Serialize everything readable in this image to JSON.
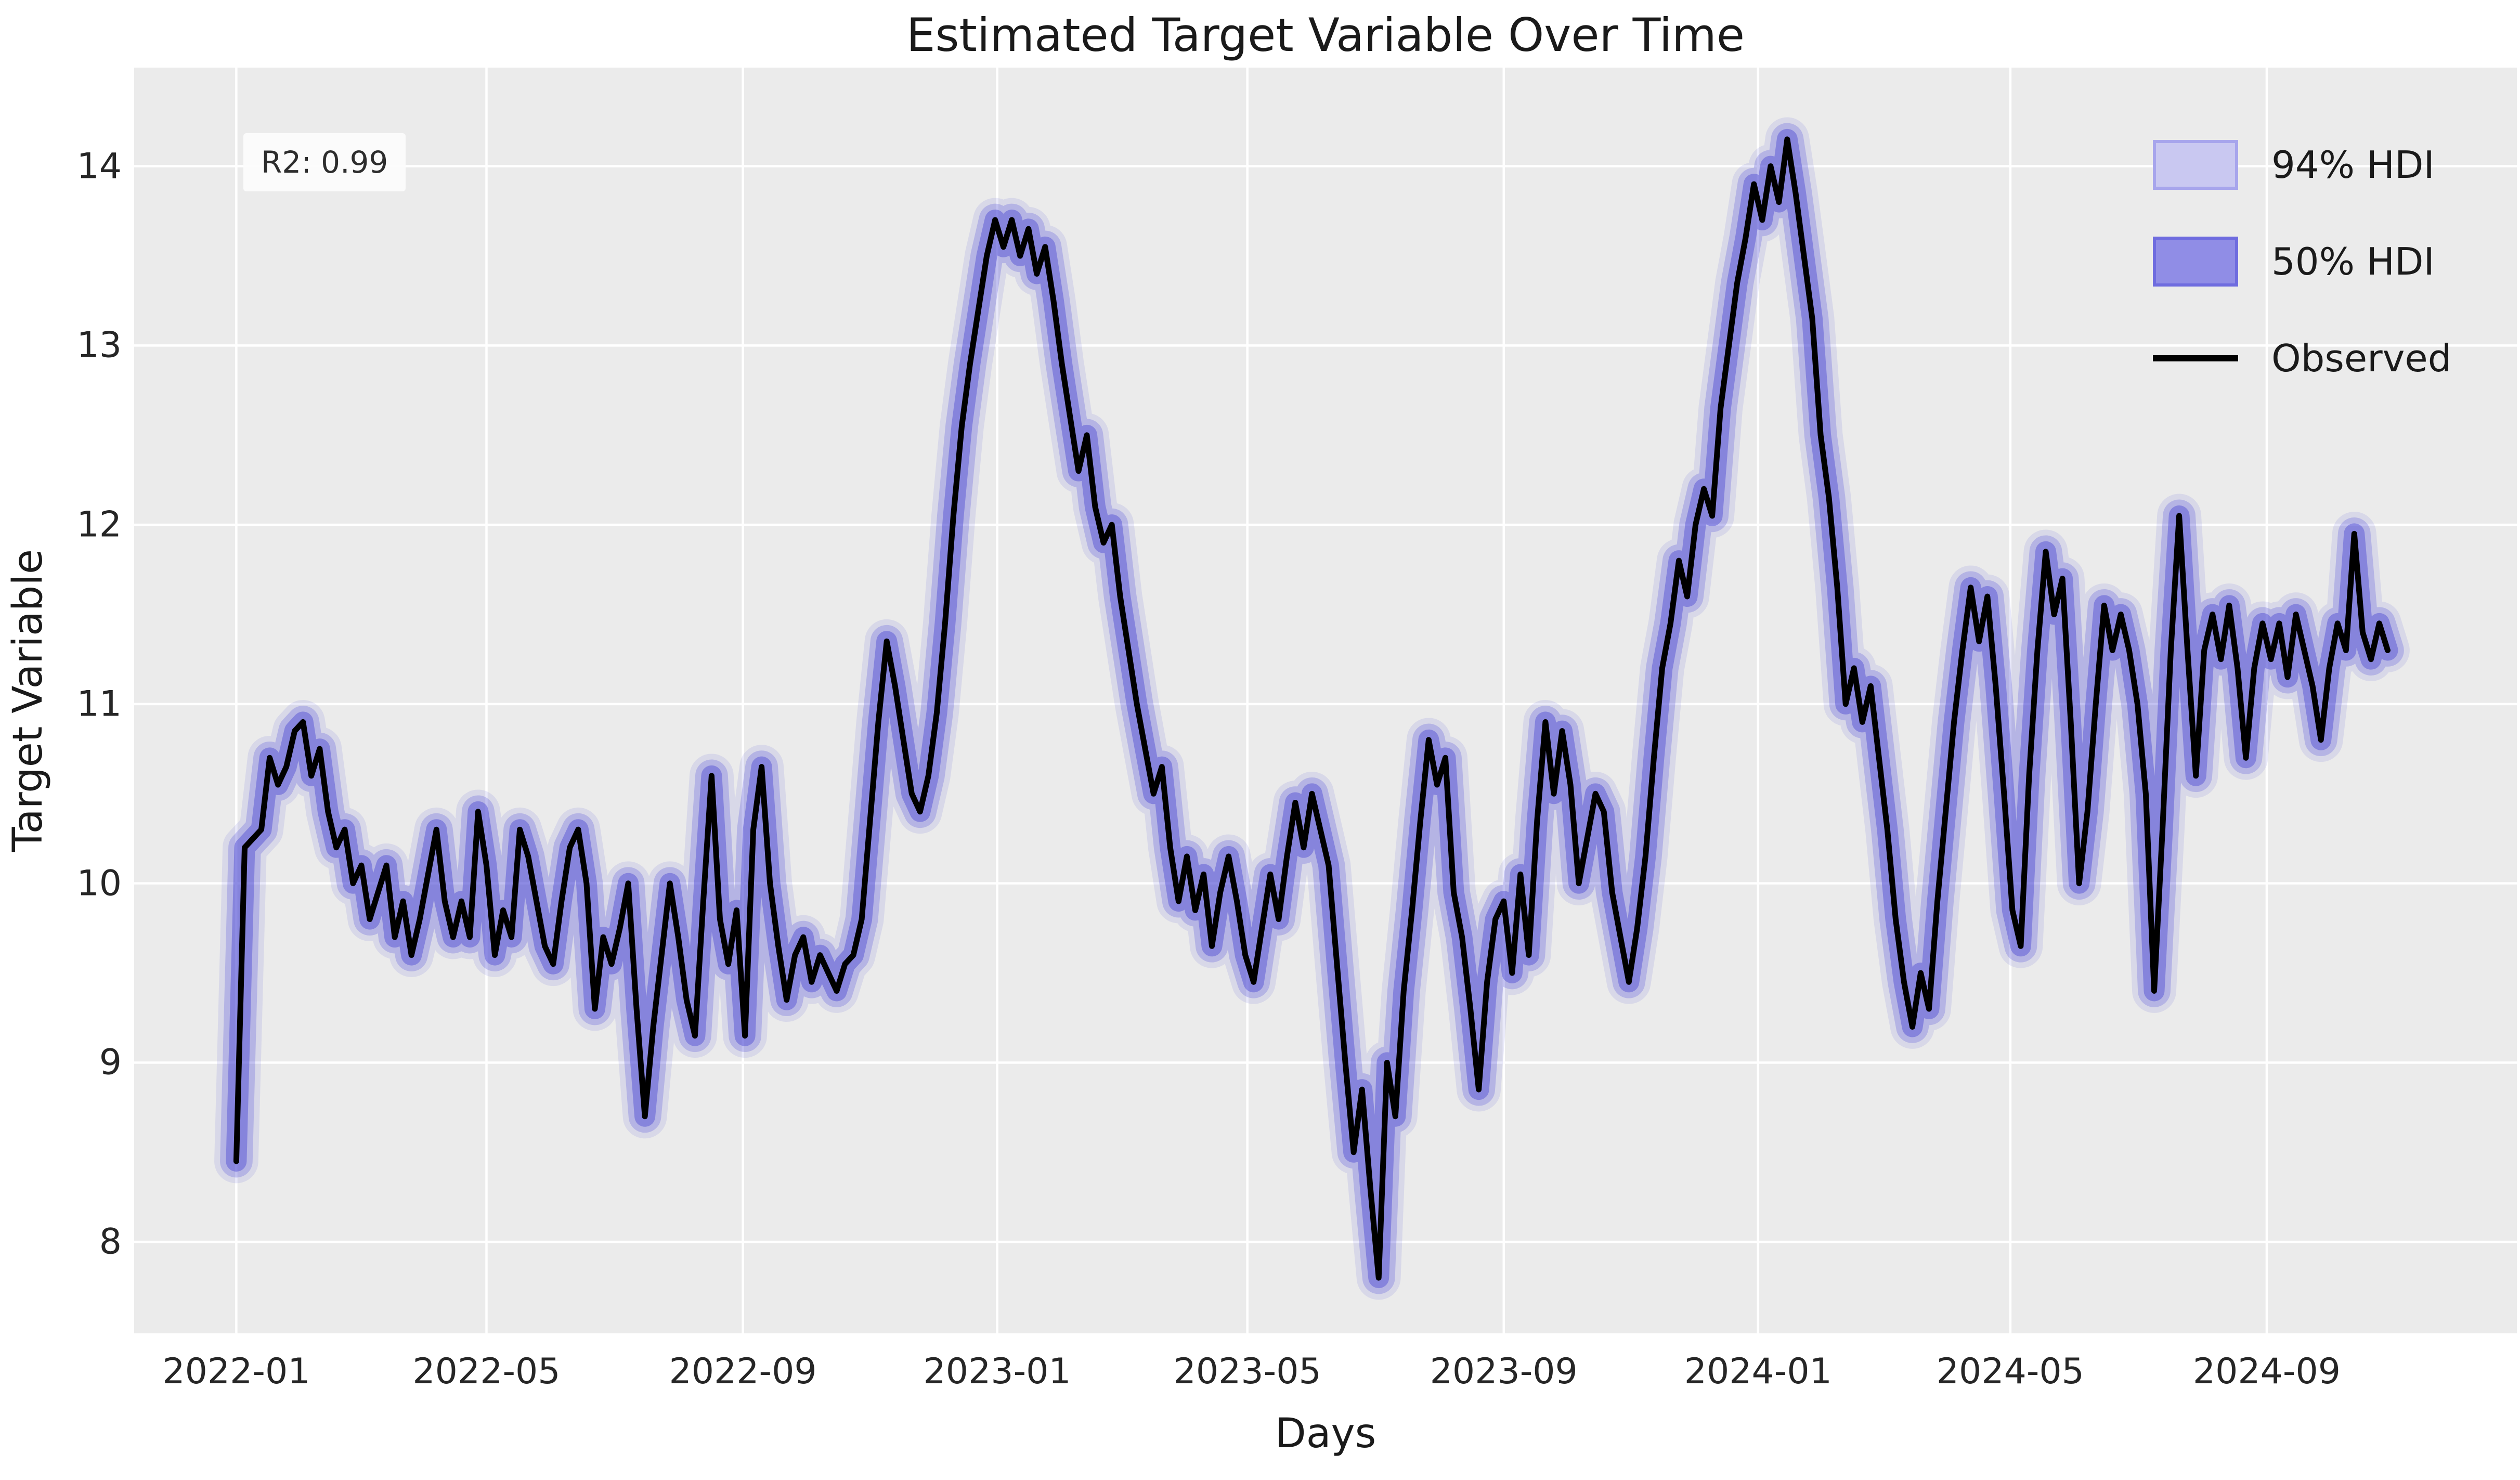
{
  "figure": {
    "title": "Estimated Target Variable Over Time",
    "background_color": "#ffffff"
  },
  "axes": {
    "xlabel": "Days",
    "ylabel": "Target Variable",
    "facecolor": "#ebebeb",
    "grid_color": "#ffffff"
  },
  "annotation": {
    "text": "R2: 0.99"
  },
  "legend": {
    "entries": [
      {
        "label": "94% HDI",
        "kind": "patch",
        "fill": "#c9c8f1",
        "border": "#a7a5ec"
      },
      {
        "label": "50% HDI",
        "kind": "patch",
        "fill": "#908de6",
        "border": "#6f6cdf"
      },
      {
        "label": "Observed",
        "kind": "line",
        "color": "#000000"
      }
    ]
  },
  "chart_data": {
    "type": "line",
    "title": "Estimated Target Variable Over Time",
    "xlabel": "Days",
    "ylabel": "Target Variable",
    "legend_position": "upper right",
    "grid": true,
    "r2_annotation": "R2: 0.99",
    "x_tick_labels": [
      "2022-01",
      "2022-05",
      "2022-09",
      "2023-01",
      "2023-05",
      "2023-09",
      "2024-01",
      "2024-05",
      "2024-09"
    ],
    "x_tick_days": [
      0,
      120,
      243,
      365,
      485,
      608,
      730,
      851,
      974
    ],
    "y_ticks": [
      8,
      9,
      10,
      11,
      12,
      13,
      14
    ],
    "xlim_days": [
      -49,
      1094
    ],
    "ylim": [
      7.49,
      14.55
    ],
    "series": [
      {
        "name": "Observed",
        "color": "#000000",
        "x_start_day": 0,
        "x_step_days": 4,
        "values": [
          8.45,
          10.2,
          10.25,
          10.3,
          10.7,
          10.55,
          10.65,
          10.85,
          10.9,
          10.6,
          10.75,
          10.4,
          10.2,
          10.3,
          10.0,
          10.1,
          9.8,
          9.95,
          10.1,
          9.7,
          9.9,
          9.6,
          9.8,
          10.05,
          10.3,
          9.9,
          9.7,
          9.9,
          9.7,
          10.4,
          10.1,
          9.6,
          9.85,
          9.7,
          10.3,
          10.15,
          9.9,
          9.65,
          9.55,
          9.9,
          10.2,
          10.3,
          10.0,
          9.3,
          9.7,
          9.55,
          9.75,
          10.0,
          9.3,
          8.7,
          9.2,
          9.6,
          10.0,
          9.7,
          9.35,
          9.15,
          9.9,
          10.6,
          9.8,
          9.55,
          9.85,
          9.15,
          10.3,
          10.65,
          10.0,
          9.65,
          9.35,
          9.6,
          9.7,
          9.45,
          9.6,
          9.5,
          9.4,
          9.55,
          9.6,
          9.8,
          10.35,
          10.9,
          11.35,
          11.1,
          10.8,
          10.5,
          10.4,
          10.6,
          10.95,
          11.45,
          12.05,
          12.55,
          12.9,
          13.2,
          13.5,
          13.7,
          13.55,
          13.7,
          13.5,
          13.65,
          13.4,
          13.55,
          13.25,
          12.9,
          12.6,
          12.3,
          12.5,
          12.1,
          11.9,
          12.0,
          11.6,
          11.3,
          11.0,
          10.75,
          10.5,
          10.65,
          10.2,
          9.9,
          10.15,
          9.85,
          10.05,
          9.65,
          9.95,
          10.15,
          9.9,
          9.6,
          9.45,
          9.75,
          10.05,
          9.8,
          10.15,
          10.45,
          10.2,
          10.5,
          10.3,
          10.1,
          9.55,
          9.0,
          8.5,
          8.85,
          8.3,
          7.8,
          9.0,
          8.7,
          9.4,
          9.85,
          10.35,
          10.8,
          10.55,
          10.7,
          9.95,
          9.7,
          9.3,
          8.85,
          9.45,
          9.8,
          9.9,
          9.5,
          10.05,
          9.6,
          10.35,
          10.9,
          10.5,
          10.85,
          10.55,
          10.0,
          10.25,
          10.5,
          10.4,
          9.95,
          9.7,
          9.45,
          9.75,
          10.15,
          10.7,
          11.2,
          11.45,
          11.8,
          11.6,
          12.0,
          12.2,
          12.05,
          12.65,
          13.0,
          13.35,
          13.6,
          13.9,
          13.7,
          14.0,
          13.8,
          14.15,
          13.85,
          13.5,
          13.15,
          12.5,
          12.15,
          11.65,
          11.0,
          11.2,
          10.9,
          11.1,
          10.7,
          10.3,
          9.8,
          9.45,
          9.2,
          9.5,
          9.3,
          9.9,
          10.4,
          10.9,
          11.3,
          11.65,
          11.35,
          11.6,
          11.1,
          10.5,
          9.85,
          9.65,
          10.6,
          11.3,
          11.85,
          11.5,
          11.7,
          10.9,
          10.0,
          10.4,
          11.0,
          11.55,
          11.3,
          11.5,
          11.3,
          11.0,
          10.5,
          9.4,
          10.3,
          11.3,
          12.05,
          11.3,
          10.6,
          11.3,
          11.5,
          11.25,
          11.55,
          11.2,
          10.7,
          11.2,
          11.45,
          11.25,
          11.45,
          11.15,
          11.5,
          11.3,
          11.1,
          10.8,
          11.2,
          11.45,
          11.3,
          11.95,
          11.4,
          11.25,
          11.45,
          11.3
        ]
      },
      {
        "name": "94% HDI",
        "band_half_width": 0.075,
        "color": "#6d69de",
        "opacity": 0.32,
        "fringe_opacity": 0.14
      },
      {
        "name": "50% HDI",
        "band_half_width": 0.042,
        "color": "#4e49d2",
        "opacity": 0.45
      }
    ]
  },
  "layout_colors": {
    "tick_label_color": "#262626",
    "text_color": "#1a1a1a",
    "observed_line_color": "#000000"
  }
}
